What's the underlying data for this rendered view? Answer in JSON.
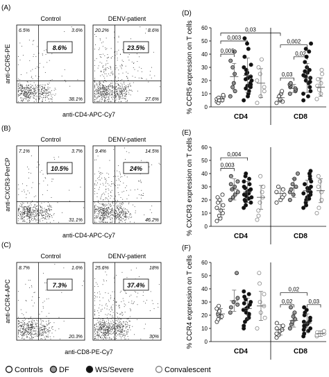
{
  "legend": {
    "items": [
      {
        "label": "Controls",
        "fill": "#ffffff"
      },
      {
        "label": "DF",
        "fill": "#9a9a9a"
      },
      {
        "label": "WS/Severe",
        "fill": "#111111"
      },
      {
        "label": "Convalescent",
        "fill": "#ffffff"
      }
    ]
  },
  "flow_panels": [
    {
      "letter": "(A)",
      "ylabel": "anti-CCR5-PE",
      "xlabel": "anti-CD4-APC-Cy7",
      "plots": [
        {
          "title": "Control",
          "tl": "6.5%",
          "tr": "3.6%",
          "br": "38.1%",
          "center": "8.6%"
        },
        {
          "title": "DENV-patient",
          "tl": "20.2%",
          "tr": "8.6%",
          "br": "27.6%",
          "center": "23.5%"
        }
      ]
    },
    {
      "letter": "(B)",
      "ylabel": "anti-CXCR3-PerCP",
      "xlabel": "anti-CD4-APC-Cy7",
      "plots": [
        {
          "title": "Control",
          "tl": "7.1%",
          "tr": "3.7%",
          "br": "31.1%",
          "center": "10.5%"
        },
        {
          "title": "DENV-patient",
          "tl": "9.4%",
          "tr": "14.5%",
          "br": "46.2%",
          "center": "24%"
        }
      ]
    },
    {
      "letter": "(C)",
      "ylabel": "anti-CCR4-APC",
      "xlabel": "anti-CD8-PE-Cy7",
      "plots": [
        {
          "title": "Control",
          "tl": "8.7%",
          "tr": "1.6%",
          "br": "20.3%",
          "center": "7.3%"
        },
        {
          "title": "DENV-patient",
          "tl": "25.6%",
          "tr": "18%",
          "br": "30%",
          "center": "37.4%"
        }
      ]
    }
  ],
  "chart_data": [
    {
      "type": "scatter",
      "letter": "(D)",
      "ylabel": "% CCR5 expression on T cells",
      "ylim": [
        0,
        60
      ],
      "yticks": [
        0,
        10,
        20,
        30,
        40,
        50,
        60
      ],
      "group_labels": [
        "CD4",
        "CD8"
      ],
      "series_names": [
        "Controls",
        "DF",
        "WS/Severe",
        "Convalescent"
      ],
      "groups": [
        {
          "name": "CD4",
          "series": [
            {
              "values": [
                4,
                5,
                6,
                7,
                8,
                9,
                3,
                5
              ],
              "mean": 6,
              "sd": 2
            },
            {
              "values": [
                8,
                12,
                15,
                18,
                25,
                30,
                42,
                35
              ],
              "mean": 23,
              "sd": 10
            },
            {
              "values": [
                5,
                8,
                10,
                12,
                14,
                15,
                17,
                18,
                20,
                22,
                23,
                25,
                26,
                28,
                30,
                32,
                38,
                44,
                48,
                52,
                21,
                16
              ],
              "mean": 24,
              "sd": 13
            },
            {
              "values": [
                3,
                8,
                12,
                15,
                20,
                25,
                30,
                36
              ],
              "mean": 18,
              "sd": 11
            }
          ]
        },
        {
          "name": "CD8",
          "series": [
            {
              "values": [
                3,
                4,
                5,
                6,
                8,
                10,
                12
              ],
              "mean": 7,
              "sd": 3
            },
            {
              "values": [
                10,
                12,
                13,
                14,
                15,
                16,
                17,
                18
              ],
              "mean": 14,
              "sd": 3
            },
            {
              "values": [
                5,
                8,
                10,
                12,
                15,
                18,
                20,
                22,
                24,
                26,
                28,
                30,
                34,
                38,
                42,
                44,
                48,
                19,
                23,
                27
              ],
              "mean": 22,
              "sd": 11
            },
            {
              "values": [
                6,
                10,
                13,
                16,
                18,
                21,
                25,
                28
              ],
              "mean": 15,
              "sd": 7
            }
          ]
        }
      ],
      "brackets": [
        {
          "group": 0,
          "from": 0,
          "to": 2,
          "y": 56,
          "label": "0,03",
          "span": true
        },
        {
          "group": 0,
          "from": 0,
          "to": 2,
          "y": 50,
          "label": "0,003"
        },
        {
          "group": 0,
          "from": 0,
          "to": 1,
          "y": 40,
          "label": "0,005"
        },
        {
          "group": 1,
          "from": 0,
          "to": 2,
          "y": 47,
          "label": "0,002"
        },
        {
          "group": 1,
          "from": 1,
          "to": 2,
          "y": 38,
          "label": "0,02"
        },
        {
          "group": 1,
          "from": 0,
          "to": 1,
          "y": 22,
          "label": "0,03"
        }
      ]
    },
    {
      "type": "scatter",
      "letter": "(E)",
      "ylabel": "% CXCR3 expression on T cells",
      "ylim": [
        0,
        60
      ],
      "yticks": [
        0,
        10,
        20,
        30,
        40,
        50,
        60
      ],
      "group_labels": [
        "CD4",
        "CD8"
      ],
      "series_names": [
        "Controls",
        "DF",
        "WS/Severe",
        "Convalescent"
      ],
      "groups": [
        {
          "name": "CD4",
          "series": [
            {
              "values": [
                4,
                6,
                8,
                10,
                12,
                14,
                16,
                18,
                20,
                22,
                24
              ],
              "mean": 13,
              "sd": 6
            },
            {
              "values": [
                20,
                22,
                24,
                26,
                28,
                30,
                32,
                34,
                38
              ],
              "mean": 28,
              "sd": 8
            },
            {
              "values": [
                14,
                16,
                18,
                20,
                22,
                24,
                26,
                27,
                28,
                29,
                30,
                32,
                34,
                36,
                38,
                40,
                19,
                23,
                25,
                21
              ],
              "mean": 26,
              "sd": 8
            },
            {
              "values": [
                5,
                8,
                12,
                18,
                22,
                26,
                30,
                38
              ],
              "mean": 22,
              "sd": 9
            }
          ]
        },
        {
          "name": "CD8",
          "series": [
            {
              "values": [
                18,
                20,
                22,
                24,
                26,
                28,
                30
              ],
              "mean": 25,
              "sd": 4
            },
            {
              "values": [
                20,
                24,
                26,
                28,
                30,
                32,
                36,
                40
              ],
              "mean": 29,
              "sd": 7
            },
            {
              "values": [
                14,
                16,
                18,
                20,
                22,
                24,
                26,
                28,
                30,
                32,
                34,
                36,
                38,
                40,
                42,
                21,
                25,
                27,
                29,
                23
              ],
              "mean": 27,
              "sd": 8
            },
            {
              "values": [
                10,
                14,
                20,
                26,
                30,
                34,
                38
              ],
              "mean": 27,
              "sd": 9
            }
          ]
        }
      ],
      "brackets": [
        {
          "group": 0,
          "from": 0,
          "to": 2,
          "y": 52,
          "label": "0,004"
        },
        {
          "group": 0,
          "from": 0,
          "to": 1,
          "y": 44,
          "label": "0,003"
        }
      ]
    },
    {
      "type": "scatter",
      "letter": "(F)",
      "ylabel": "% CCR4 expression on T cells",
      "ylim": [
        0,
        60
      ],
      "yticks": [
        0,
        10,
        20,
        30,
        40,
        50,
        60
      ],
      "group_labels": [
        "CD4",
        "CD8"
      ],
      "series_names": [
        "Controls",
        "DF",
        "WS/Severe",
        "Convalescent"
      ],
      "groups": [
        {
          "name": "CD4",
          "series": [
            {
              "values": [
                15,
                17,
                19,
                20,
                21,
                22,
                23,
                25,
                27
              ],
              "mean": 21,
              "sd": 4
            },
            {
              "values": [
                22,
                26,
                28,
                30,
                33,
                52
              ],
              "mean": 31,
              "sd": 8
            },
            {
              "values": [
                10,
                12,
                15,
                18,
                20,
                22,
                24,
                26,
                28,
                30,
                32,
                34,
                36,
                38,
                17,
                21,
                25,
                29
              ],
              "mean": 25,
              "sd": 8
            },
            {
              "values": [
                10,
                18,
                22,
                27,
                30,
                36,
                44,
                52
              ],
              "mean": 27,
              "sd": 11
            }
          ]
        },
        {
          "name": "CD8",
          "series": [
            {
              "values": [
                3,
                5,
                6,
                8,
                9,
                10,
                12,
                14
              ],
              "mean": 9,
              "sd": 4
            },
            {
              "values": [
                10,
                13,
                15,
                17,
                19,
                22,
                26
              ],
              "mean": 16,
              "sd": 5
            },
            {
              "values": [
                4,
                6,
                8,
                10,
                11,
                12,
                13,
                14,
                16,
                18,
                20,
                22,
                24,
                26,
                9,
                15
              ],
              "mean": 14,
              "sd": 7
            },
            {
              "values": [
                4,
                5,
                6,
                7,
                8
              ],
              "mean": 6,
              "sd": 2
            }
          ]
        }
      ],
      "brackets": [
        {
          "group": 1,
          "from": 0,
          "to": 2,
          "y": 37,
          "label": "0,02"
        },
        {
          "group": 1,
          "from": 0,
          "to": 1,
          "y": 28,
          "label": "0,02"
        },
        {
          "group": 1,
          "from": 2,
          "to": 3,
          "y": 28,
          "label": "0,03"
        }
      ]
    }
  ]
}
